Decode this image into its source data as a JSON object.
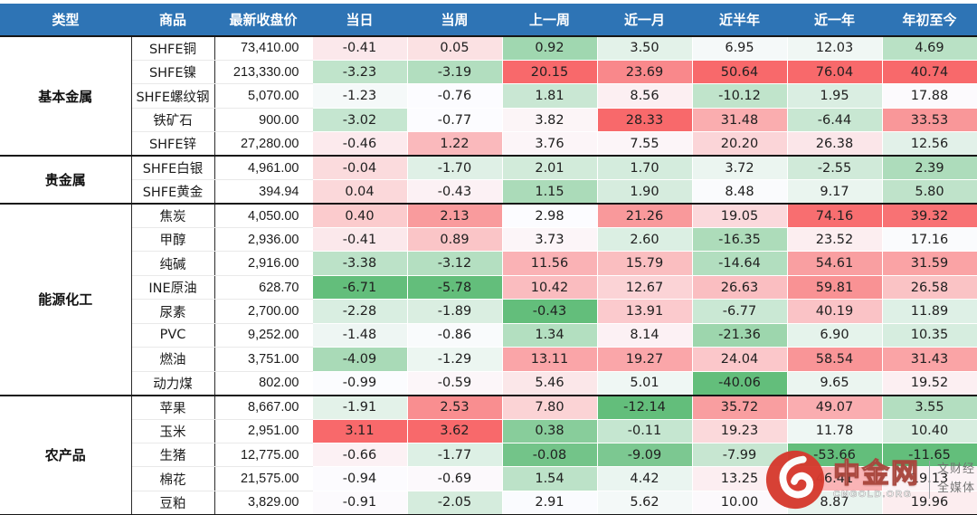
{
  "chart_data": {
    "type": "heatmap",
    "columns": [
      "类型",
      "商品",
      "最新收盘价",
      "当日",
      "当周",
      "上一周",
      "近一月",
      "近半年",
      "近一年",
      "年初至今"
    ],
    "colorscale": {
      "low": "#63BE7B",
      "mid": "#FCFCFF",
      "high": "#F8696B",
      "mapping": "per-column: min=green, median=white, max=red"
    },
    "header_bg": "#2E74B5",
    "groups": [
      {
        "type": "基本金属",
        "rows": [
          {
            "name": "SHFE铜",
            "close": "73,410.00",
            "pct": [
              "-0.41",
              "0.05",
              "0.92",
              "3.50",
              "6.95",
              "12.03",
              "4.69"
            ]
          },
          {
            "name": "SHFE镍",
            "close": "213,330.00",
            "pct": [
              "-3.23",
              "-3.19",
              "20.15",
              "23.69",
              "50.64",
              "76.04",
              "40.74"
            ]
          },
          {
            "name": "SHFE螺纹钢",
            "close": "5,070.00",
            "pct": [
              "-1.23",
              "-0.76",
              "1.81",
              "8.56",
              "-10.12",
              "1.95",
              "17.88"
            ]
          },
          {
            "name": "铁矿石",
            "close": "900.00",
            "pct": [
              "-3.02",
              "-0.77",
              "3.82",
              "28.33",
              "31.48",
              "-6.44",
              "33.53"
            ]
          },
          {
            "name": "SHFE锌",
            "close": "27,280.00",
            "pct": [
              "-0.46",
              "1.22",
              "3.76",
              "7.55",
              "20.20",
              "26.38",
              "12.56"
            ]
          }
        ]
      },
      {
        "type": "贵金属",
        "rows": [
          {
            "name": "SHFE白银",
            "close": "4,961.00",
            "pct": [
              "-0.04",
              "-1.70",
              "2.01",
              "1.70",
              "3.72",
              "-2.55",
              "2.39"
            ]
          },
          {
            "name": "SHFE黄金",
            "close": "394.94",
            "pct": [
              "0.04",
              "-0.43",
              "1.15",
              "1.90",
              "8.48",
              "9.17",
              "5.80"
            ]
          }
        ]
      },
      {
        "type": "能源化工",
        "rows": [
          {
            "name": "焦炭",
            "close": "4,050.00",
            "pct": [
              "0.40",
              "2.13",
              "2.98",
              "21.26",
              "19.05",
              "74.16",
              "39.32"
            ]
          },
          {
            "name": "甲醇",
            "close": "2,936.00",
            "pct": [
              "-0.41",
              "0.89",
              "3.73",
              "2.60",
              "-16.35",
              "23.52",
              "17.16"
            ]
          },
          {
            "name": "纯碱",
            "close": "2,916.00",
            "pct": [
              "-3.38",
              "-3.12",
              "11.56",
              "15.79",
              "-14.64",
              "54.61",
              "31.59"
            ]
          },
          {
            "name": "INE原油",
            "close": "628.70",
            "pct": [
              "-6.71",
              "-5.78",
              "10.42",
              "12.67",
              "26.63",
              "59.81",
              "26.58"
            ]
          },
          {
            "name": "尿素",
            "close": "2,700.00",
            "pct": [
              "-2.28",
              "-1.89",
              "-0.43",
              "13.91",
              "-6.77",
              "40.19",
              "11.89"
            ]
          },
          {
            "name": "PVC",
            "close": "9,252.00",
            "pct": [
              "-1.48",
              "-0.86",
              "1.34",
              "8.14",
              "-21.36",
              "6.90",
              "10.35"
            ]
          },
          {
            "name": "燃油",
            "close": "3,751.00",
            "pct": [
              "-4.09",
              "-1.29",
              "13.11",
              "19.27",
              "24.04",
              "58.54",
              "31.43"
            ]
          },
          {
            "name": "动力煤",
            "close": "802.00",
            "pct": [
              "-0.99",
              "-0.59",
              "5.46",
              "5.01",
              "-40.06",
              "9.65",
              "19.52"
            ]
          }
        ]
      },
      {
        "type": "农产品",
        "rows": [
          {
            "name": "苹果",
            "close": "8,667.00",
            "pct": [
              "-1.91",
              "2.53",
              "7.80",
              "-12.14",
              "35.72",
              "49.07",
              "3.55"
            ]
          },
          {
            "name": "玉米",
            "close": "2,951.00",
            "pct": [
              "3.11",
              "3.62",
              "0.38",
              "-0.11",
              "19.23",
              "11.78",
              "10.40"
            ]
          },
          {
            "name": "生猪",
            "close": "12,775.00",
            "pct": [
              "-0.66",
              "-1.77",
              "-0.08",
              "-9.09",
              "-7.99",
              "-53.66",
              "-11.65"
            ]
          },
          {
            "name": "棉花",
            "close": "21,575.00",
            "pct": [
              "-0.94",
              "-0.69",
              "1.54",
              "4.42",
              "13.25",
              "46.41",
              "19.13"
            ]
          },
          {
            "name": "豆粕",
            "close": "3,829.00",
            "pct": [
              "-0.91",
              "-2.05",
              "2.91",
              "5.62",
              "10.00",
              "8.87",
              "19.96"
            ]
          }
        ]
      }
    ]
  },
  "watermark": {
    "brand": "中金网",
    "domain": "CNGOLD.ORG",
    "slogan1": "文财经",
    "slogan2": "全媒体"
  }
}
